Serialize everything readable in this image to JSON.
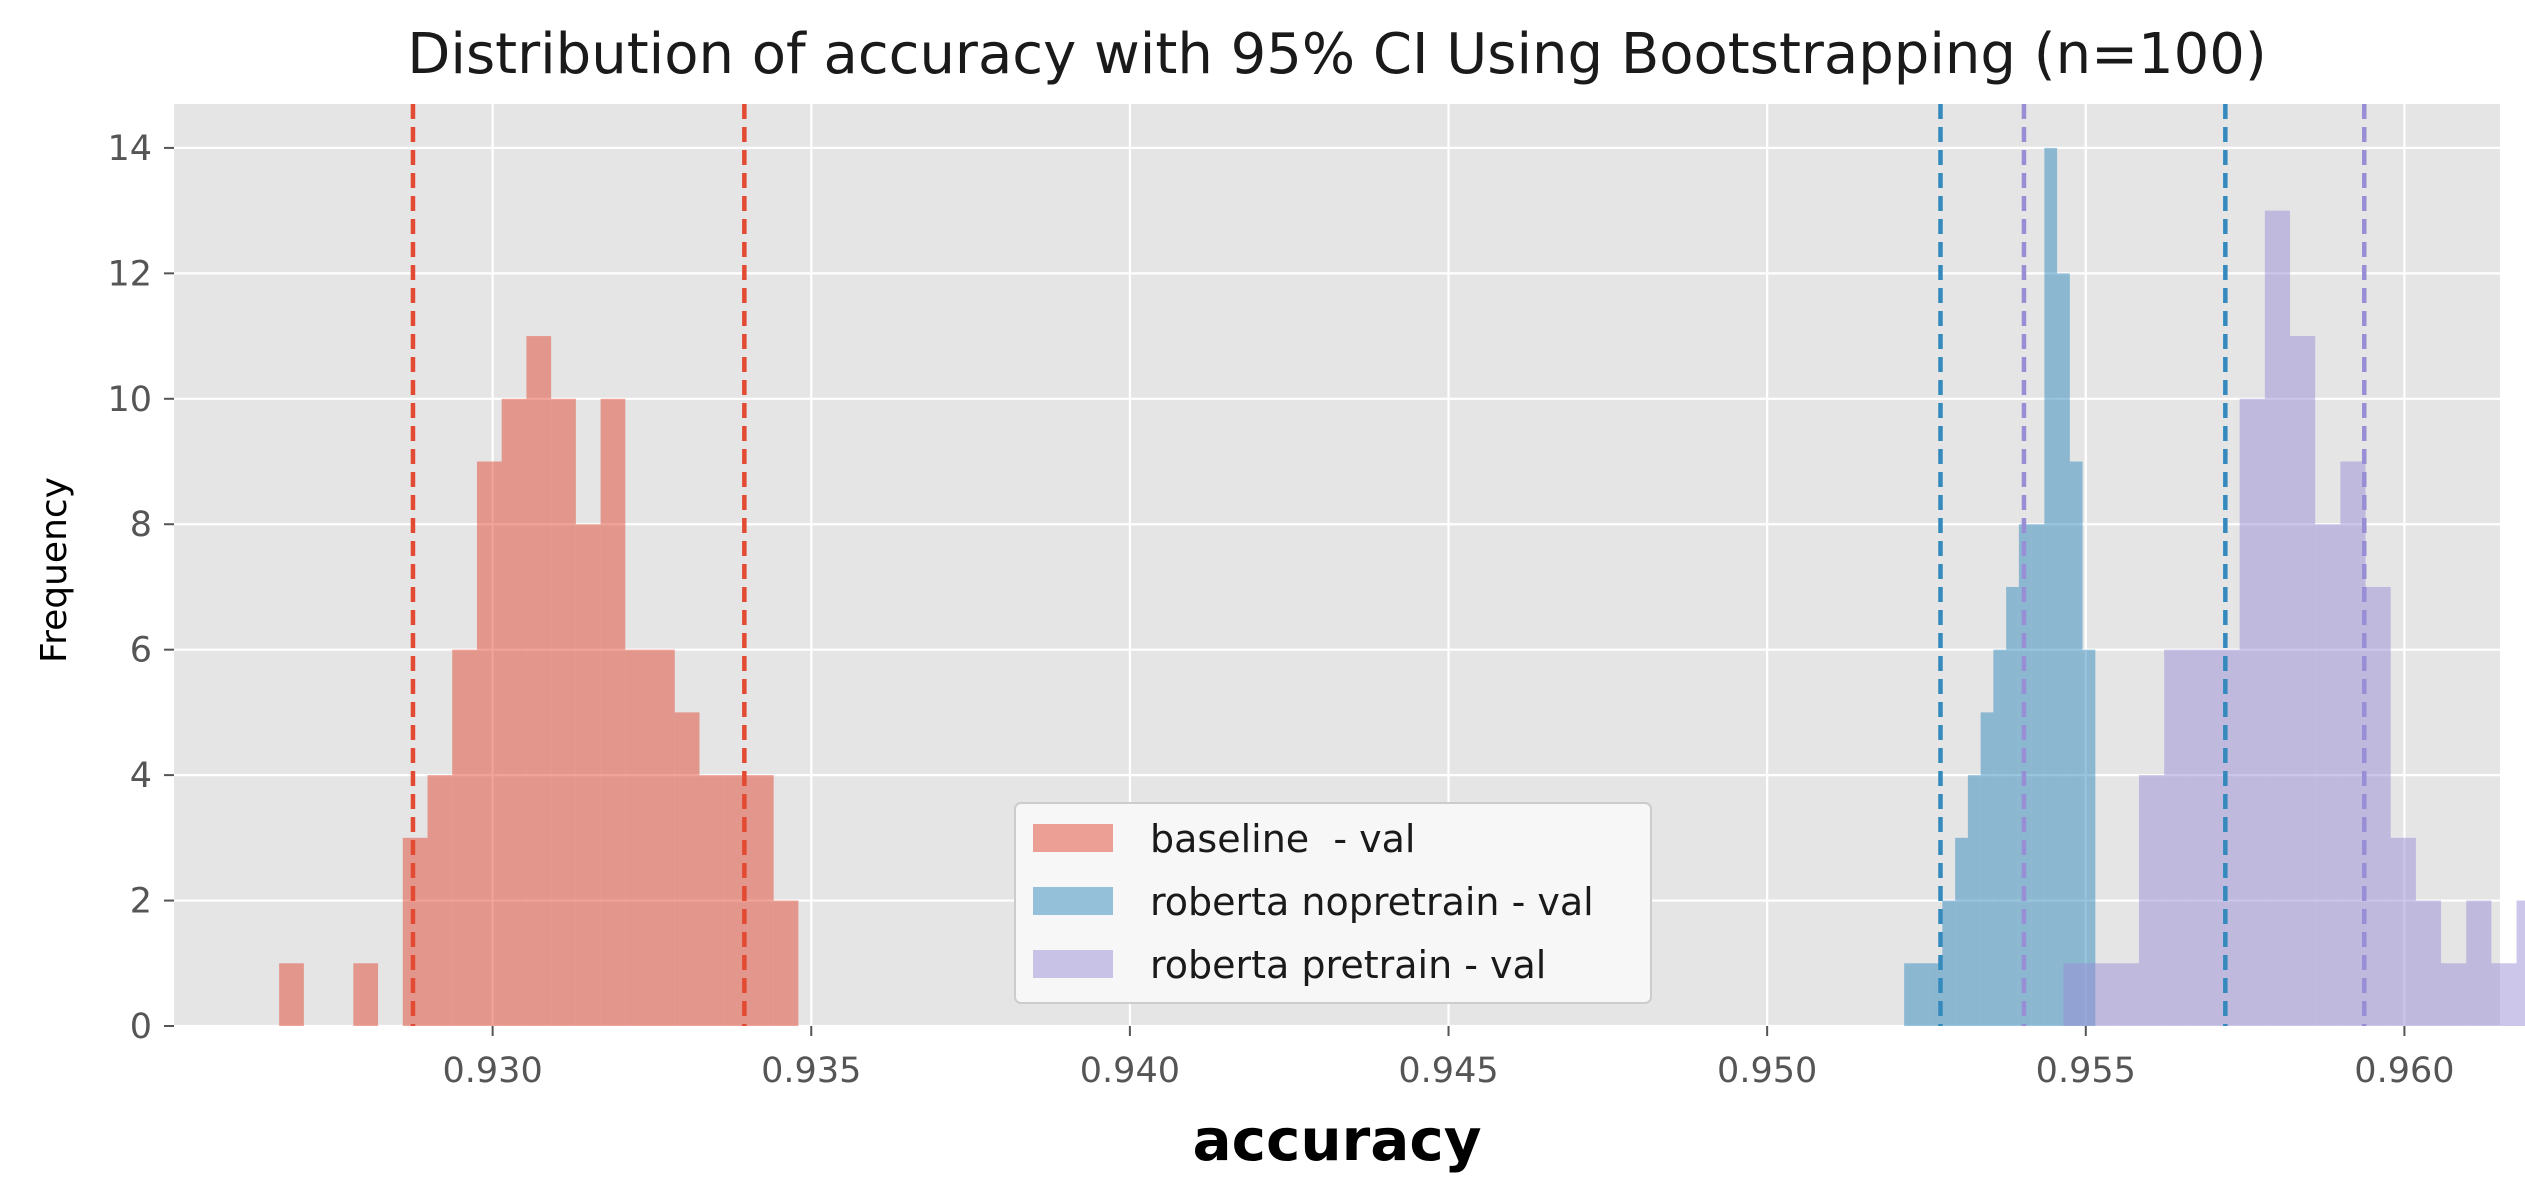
{
  "chart_data": {
    "type": "bar",
    "title": "Distribution of accuracy with 95% CI Using Bootstrapping (n=100)",
    "xlabel": "accuracy",
    "ylabel": "Frequency",
    "xlim": [
      0.925,
      0.9615
    ],
    "ylim": [
      0,
      14.7
    ],
    "xticks": [
      0.93,
      0.935,
      0.94,
      0.945,
      0.95,
      0.955,
      0.96
    ],
    "xtick_labels": [
      "0.930",
      "0.935",
      "0.940",
      "0.945",
      "0.950",
      "0.955",
      "0.960"
    ],
    "yticks": [
      0,
      2,
      4,
      6,
      8,
      10,
      12,
      14
    ],
    "ytick_labels": [
      "0",
      "2",
      "4",
      "6",
      "8",
      "10",
      "12",
      "14"
    ],
    "grid": true,
    "legend_position": "bottom-center",
    "series": [
      {
        "name": "baseline  - val",
        "color": "#E24A33",
        "opacity": 0.5,
        "bin_start": 0.92665,
        "bin_width": 0.000388,
        "counts": [
          1,
          0,
          0,
          1,
          0,
          3,
          4,
          6,
          9,
          10,
          11,
          10,
          8,
          10,
          6,
          6,
          5,
          4,
          4,
          4,
          2
        ],
        "ci": [
          0.92875,
          0.93395
        ]
      },
      {
        "name": "roberta nopretrain - val",
        "color": "#348ABD",
        "opacity": 0.5,
        "bin_start": 0.95215,
        "bin_width": 0.0002,
        "counts": [
          1,
          1,
          1,
          2,
          3,
          4,
          5,
          6,
          7,
          8,
          8,
          14,
          12,
          9,
          6
        ],
        "ci": [
          0.95272,
          0.95719
        ]
      },
      {
        "name": "roberta pretrain - val",
        "color": "#988ED5",
        "opacity": 0.5,
        "bin_start": 0.95465,
        "bin_width": 0.000395,
        "counts": [
          1,
          1,
          1,
          4,
          6,
          6,
          6,
          10,
          13,
          11,
          8,
          9,
          7,
          3,
          2,
          1,
          2,
          1,
          2
        ],
        "ci": [
          0.95403,
          0.95937
        ]
      }
    ]
  }
}
